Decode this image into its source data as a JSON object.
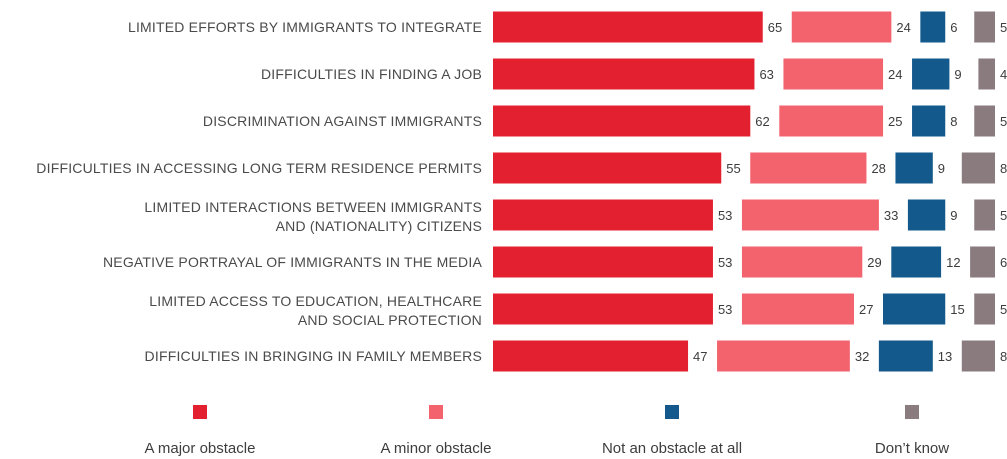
{
  "chart_data": {
    "type": "bar",
    "stacked": true,
    "orientation": "horizontal",
    "categories": [
      [
        "LIMITED EFFORTS BY IMMIGRANTS TO INTEGRATE"
      ],
      [
        "DIFFICULTIES IN FINDING A JOB"
      ],
      [
        "DISCRIMINATION AGAINST IMMIGRANTS"
      ],
      [
        "DIFFICULTIES IN ACCESSING LONG TERM RESIDENCE PERMITS"
      ],
      [
        "LIMITED INTERACTIONS BETWEEN IMMIGRANTS",
        "AND (NATIONALITY) CITIZENS"
      ],
      [
        "NEGATIVE PORTRAYAL OF IMMIGRANTS IN THE MEDIA"
      ],
      [
        "LIMITED ACCESS TO EDUCATION, HEALTHCARE",
        "AND SOCIAL PROTECTION"
      ],
      [
        "DIFFICULTIES IN BRINGING IN FAMILY MEMBERS"
      ]
    ],
    "series": [
      {
        "name": "A major obstacle",
        "color": "#e3202f",
        "values": [
          65,
          63,
          62,
          55,
          53,
          53,
          53,
          47
        ]
      },
      {
        "name": "A minor obstacle",
        "color": "#f2636d",
        "values": [
          24,
          24,
          25,
          28,
          33,
          29,
          27,
          32
        ]
      },
      {
        "name": "Not an obstacle at all",
        "color": "#13598c",
        "values": [
          6,
          9,
          8,
          9,
          9,
          12,
          15,
          13
        ]
      },
      {
        "name": "Don’t know",
        "color": "#8a7b7f",
        "values": [
          5,
          4,
          5,
          8,
          5,
          6,
          5,
          8
        ]
      }
    ],
    "legend_position": "bottom",
    "grid": false
  }
}
